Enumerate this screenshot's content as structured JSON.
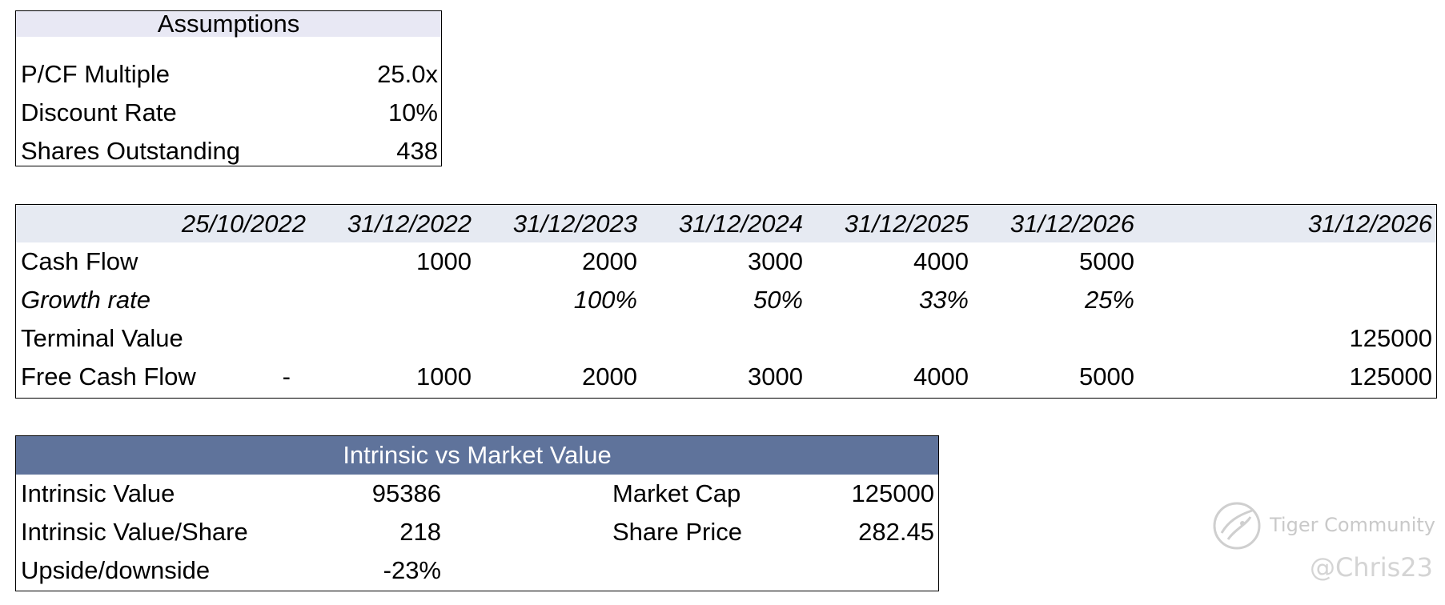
{
  "assumptions": {
    "title": "Assumptions",
    "rows": [
      {
        "label": "P/CF Multiple",
        "value": "25.0x"
      },
      {
        "label": "Discount Rate",
        "value": "10%"
      },
      {
        "label": "Shares Outstanding",
        "value": "438"
      }
    ]
  },
  "cashflow": {
    "dates": [
      "25/10/2022",
      "31/12/2022",
      "31/12/2023",
      "31/12/2024",
      "31/12/2025",
      "31/12/2026",
      "31/12/2026"
    ],
    "cash_flow": {
      "label": "Cash Flow",
      "values": [
        "1000",
        "2000",
        "3000",
        "4000",
        "5000"
      ]
    },
    "growth_rate": {
      "label": "Growth rate",
      "values": [
        "100%",
        "50%",
        "33%",
        "25%"
      ]
    },
    "terminal_value": {
      "label": "Terminal Value",
      "value": "125000"
    },
    "free_cash_flow": {
      "label": "Free Cash Flow",
      "dash": "-",
      "values": [
        "1000",
        "2000",
        "3000",
        "4000",
        "5000",
        "125000"
      ]
    }
  },
  "intrinsic": {
    "title": "Intrinsic vs Market Value",
    "left": [
      {
        "label": "Intrinsic Value",
        "value": "95386"
      },
      {
        "label": "Intrinsic Value/Share",
        "value": "218"
      },
      {
        "label": "Upside/downside",
        "value": "-23%"
      }
    ],
    "right": [
      {
        "label": "Market Cap",
        "value": "125000"
      },
      {
        "label": "Share Price",
        "value": "282.45"
      }
    ],
    "header_color": "#5f739b"
  },
  "watermark": {
    "brand": "Tiger Community",
    "user": "@Chris23",
    "icon": "tiger-logo-icon"
  }
}
